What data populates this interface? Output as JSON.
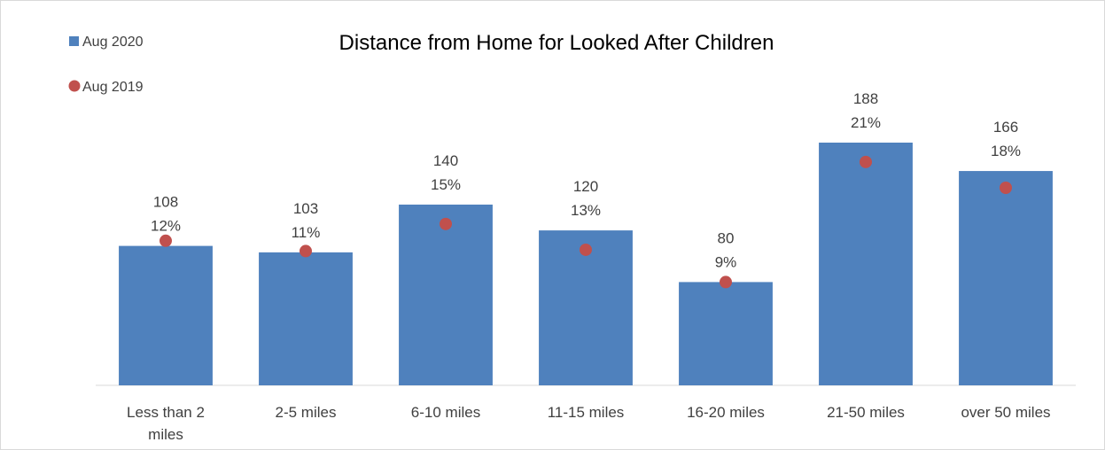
{
  "chart_data": {
    "type": "bar",
    "title": "Distance from Home for Looked After Children",
    "categories": [
      "Less than 2 miles",
      "2-5 miles",
      "6-10 miles",
      "11-15 miles",
      "16-20 miles",
      "21-50 miles",
      "over 50 miles"
    ],
    "category_lines": [
      [
        "Less than 2",
        "miles"
      ],
      [
        "2-5 miles"
      ],
      [
        "6-10 miles"
      ],
      [
        "11-15 miles"
      ],
      [
        "16-20 miles"
      ],
      [
        "21-50 miles"
      ],
      [
        "over 50 miles"
      ]
    ],
    "series": [
      {
        "name": "Aug 2020",
        "kind": "bar",
        "color": "#4f81bd",
        "values": [
          108,
          103,
          140,
          120,
          80,
          188,
          166
        ]
      },
      {
        "name": "Aug 2019",
        "kind": "marker",
        "color": "#c0504d",
        "values": [
          112,
          104,
          125,
          105,
          80,
          173,
          153
        ]
      }
    ],
    "data_labels": [
      {
        "count": "108",
        "pct": "12%"
      },
      {
        "count": "103",
        "pct": "11%"
      },
      {
        "count": "140",
        "pct": "15%"
      },
      {
        "count": "120",
        "pct": "13%"
      },
      {
        "count": "80",
        "pct": "9%"
      },
      {
        "count": "188",
        "pct": "21%"
      },
      {
        "count": "166",
        "pct": "18%"
      }
    ],
    "ylim": [
      0,
      195
    ],
    "grid": false,
    "legend_position": "top-left"
  }
}
